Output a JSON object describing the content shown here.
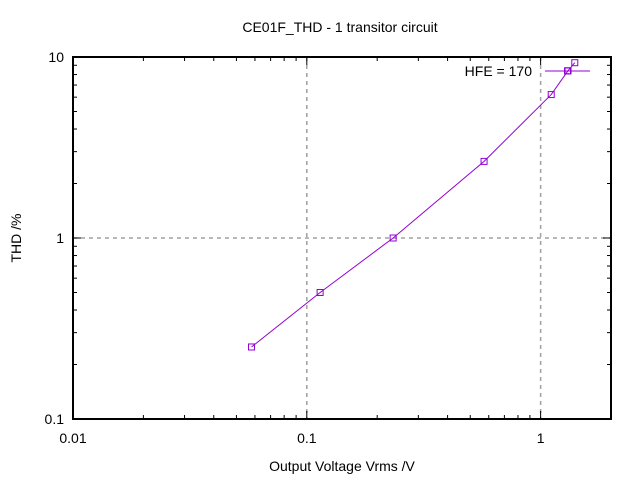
{
  "chart_data": {
    "type": "line",
    "title": "CE01F_THD - 1 transitor circuit",
    "xlabel": "Output Voltage Vrms /V",
    "ylabel": "THD /%",
    "xscale": "log",
    "yscale": "log",
    "xlim": [
      0.01,
      2
    ],
    "ylim": [
      0.1,
      10
    ],
    "x_ticks": [
      0.01,
      0.1,
      1
    ],
    "x_tick_labels": [
      "0.01",
      "0.1",
      "1"
    ],
    "y_ticks": [
      0.1,
      1,
      10
    ],
    "y_tick_labels": [
      "0.1",
      "1",
      "10"
    ],
    "grid": "major, dashed",
    "legend_position": "top-right",
    "series": [
      {
        "name": "HFE = 170",
        "color": "#9400d3",
        "marker": "square",
        "x": [
          0.058,
          0.114,
          0.234,
          0.573,
          1.11,
          1.31,
          1.4
        ],
        "y": [
          0.25,
          0.5,
          1.0,
          2.65,
          6.2,
          8.4,
          9.3
        ]
      }
    ]
  }
}
